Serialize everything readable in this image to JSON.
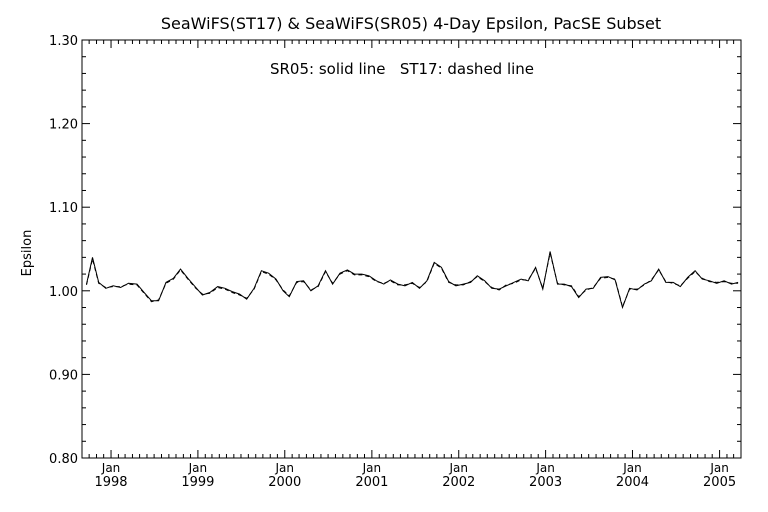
{
  "chart_data": {
    "type": "line",
    "title": "SeaWiFS(ST17) & SeaWiFS(SR05) 4-Day Epsilon, PacSE Subset",
    "annotation": "SR05: solid line   ST17: dashed line",
    "ylabel": "Epsilon",
    "xlabel": "",
    "ylim": [
      0.8,
      1.3
    ],
    "xlim": [
      "1997-09-01",
      "2005-04-01"
    ],
    "grid": false,
    "y_ticks": [
      "0.80",
      "0.90",
      "1.00",
      "1.10",
      "1.20",
      "1.30"
    ],
    "x_ticks": [
      {
        "month": "Jan",
        "year": "1998",
        "date": "1998-01-01"
      },
      {
        "month": "Jan",
        "year": "1999",
        "date": "1999-01-01"
      },
      {
        "month": "Jan",
        "year": "2000",
        "date": "2000-01-01"
      },
      {
        "month": "Jan",
        "year": "2001",
        "date": "2001-01-01"
      },
      {
        "month": "Jan",
        "year": "2002",
        "date": "2002-01-01"
      },
      {
        "month": "Jan",
        "year": "2003",
        "date": "2003-01-01"
      },
      {
        "month": "Jan",
        "year": "2004",
        "date": "2004-01-01"
      },
      {
        "month": "Jan",
        "year": "2005",
        "date": "2005-01-01"
      }
    ],
    "series": [
      {
        "style": "solid",
        "color": "#000000",
        "points": [
          [
            "1997-09-20",
            1.008
          ],
          [
            "1997-10-15",
            1.04
          ],
          [
            "1997-11-10",
            1.01
          ],
          [
            "1997-12-10",
            1.003
          ],
          [
            "1998-01-10",
            1.006
          ],
          [
            "1998-02-10",
            1.004
          ],
          [
            "1998-03-15",
            1.009
          ],
          [
            "1998-04-20",
            1.008
          ],
          [
            "1998-05-20",
            0.998
          ],
          [
            "1998-06-20",
            0.988
          ],
          [
            "1998-07-20",
            0.988
          ],
          [
            "1998-08-20",
            1.01
          ],
          [
            "1998-09-20",
            1.015
          ],
          [
            "1998-10-20",
            1.026
          ],
          [
            "1998-11-20",
            1.015
          ],
          [
            "1998-12-20",
            1.005
          ],
          [
            "1999-01-20",
            0.995
          ],
          [
            "1999-02-20",
            0.998
          ],
          [
            "1999-03-25",
            1.005
          ],
          [
            "1999-04-25",
            1.003
          ],
          [
            "1999-05-25",
            0.999
          ],
          [
            "1999-06-25",
            0.996
          ],
          [
            "1999-07-25",
            0.99
          ],
          [
            "1999-08-25",
            1.003
          ],
          [
            "1999-09-25",
            1.024
          ],
          [
            "1999-10-25",
            1.021
          ],
          [
            "1999-11-25",
            1.014
          ],
          [
            "1999-12-25",
            1.0
          ],
          [
            "2000-01-20",
            0.993
          ],
          [
            "2000-02-20",
            1.011
          ],
          [
            "2000-03-20",
            1.012
          ],
          [
            "2000-04-20",
            1.0
          ],
          [
            "2000-05-20",
            1.006
          ],
          [
            "2000-06-20",
            1.024
          ],
          [
            "2000-07-20",
            1.008
          ],
          [
            "2000-08-20",
            1.021
          ],
          [
            "2000-09-20",
            1.025
          ],
          [
            "2000-10-20",
            1.02
          ],
          [
            "2000-11-20",
            1.02
          ],
          [
            "2000-12-20",
            1.018
          ],
          [
            "2001-01-20",
            1.012
          ],
          [
            "2001-02-20",
            1.008
          ],
          [
            "2001-03-20",
            1.013
          ],
          [
            "2001-04-20",
            1.008
          ],
          [
            "2001-05-20",
            1.006
          ],
          [
            "2001-06-20",
            1.01
          ],
          [
            "2001-07-20",
            1.003
          ],
          [
            "2001-08-20",
            1.012
          ],
          [
            "2001-09-20",
            1.034
          ],
          [
            "2001-10-20",
            1.028
          ],
          [
            "2001-11-20",
            1.011
          ],
          [
            "2001-12-20",
            1.006
          ],
          [
            "2002-01-20",
            1.008
          ],
          [
            "2002-02-20",
            1.01
          ],
          [
            "2002-03-20",
            1.018
          ],
          [
            "2002-04-20",
            1.012
          ],
          [
            "2002-05-20",
            1.003
          ],
          [
            "2002-06-20",
            1.002
          ],
          [
            "2002-07-20",
            1.006
          ],
          [
            "2002-08-20",
            1.01
          ],
          [
            "2002-09-20",
            1.014
          ],
          [
            "2002-10-20",
            1.012
          ],
          [
            "2002-11-20",
            1.028
          ],
          [
            "2002-12-20",
            1.002
          ],
          [
            "2003-01-20",
            1.047
          ],
          [
            "2003-02-20",
            1.008
          ],
          [
            "2003-03-20",
            1.008
          ],
          [
            "2003-04-20",
            1.005
          ],
          [
            "2003-05-20",
            0.992
          ],
          [
            "2003-06-20",
            1.002
          ],
          [
            "2003-07-20",
            1.003
          ],
          [
            "2003-08-20",
            1.016
          ],
          [
            "2003-09-20",
            1.017
          ],
          [
            "2003-10-20",
            1.013
          ],
          [
            "2003-11-20",
            0.98
          ],
          [
            "2003-12-20",
            1.003
          ],
          [
            "2004-01-20",
            1.001
          ],
          [
            "2004-02-20",
            1.008
          ],
          [
            "2004-03-20",
            1.012
          ],
          [
            "2004-04-20",
            1.026
          ],
          [
            "2004-05-20",
            1.01
          ],
          [
            "2004-06-20",
            1.01
          ],
          [
            "2004-07-20",
            1.005
          ],
          [
            "2004-08-20",
            1.016
          ],
          [
            "2004-09-20",
            1.024
          ],
          [
            "2004-10-20",
            1.014
          ],
          [
            "2004-11-20",
            1.012
          ],
          [
            "2004-12-20",
            1.009
          ],
          [
            "2005-01-20",
            1.012
          ],
          [
            "2005-02-20",
            1.008
          ],
          [
            "2005-03-20",
            1.01
          ]
        ]
      },
      {
        "style": "dashed",
        "color": "#000000",
        "points": [
          [
            "1997-09-20",
            1.007
          ],
          [
            "1997-10-15",
            1.038
          ],
          [
            "1997-11-10",
            1.009
          ],
          [
            "1997-12-10",
            1.004
          ],
          [
            "1998-01-10",
            1.005
          ],
          [
            "1998-02-10",
            1.005
          ],
          [
            "1998-03-15",
            1.008
          ],
          [
            "1998-04-20",
            1.007
          ],
          [
            "1998-05-20",
            0.997
          ],
          [
            "1998-06-20",
            0.987
          ],
          [
            "1998-07-20",
            0.989
          ],
          [
            "1998-08-20",
            1.009
          ],
          [
            "1998-09-20",
            1.014
          ],
          [
            "1998-10-20",
            1.025
          ],
          [
            "1998-11-20",
            1.014
          ],
          [
            "1998-12-20",
            1.004
          ],
          [
            "1999-01-20",
            0.996
          ],
          [
            "1999-02-20",
            0.997
          ],
          [
            "1999-03-25",
            1.004
          ],
          [
            "1999-04-25",
            1.002
          ],
          [
            "1999-05-25",
            0.998
          ],
          [
            "1999-06-25",
            0.995
          ],
          [
            "1999-07-25",
            0.991
          ],
          [
            "1999-08-25",
            1.002
          ],
          [
            "1999-09-25",
            1.023
          ],
          [
            "1999-10-25",
            1.02
          ],
          [
            "1999-11-25",
            1.013
          ],
          [
            "1999-12-25",
            1.001
          ],
          [
            "2000-01-20",
            0.994
          ],
          [
            "2000-02-20",
            1.01
          ],
          [
            "2000-03-20",
            1.011
          ],
          [
            "2000-04-20",
            1.001
          ],
          [
            "2000-05-20",
            1.005
          ],
          [
            "2000-06-20",
            1.023
          ],
          [
            "2000-07-20",
            1.009
          ],
          [
            "2000-08-20",
            1.02
          ],
          [
            "2000-09-20",
            1.024
          ],
          [
            "2000-10-20",
            1.019
          ],
          [
            "2000-11-20",
            1.019
          ],
          [
            "2000-12-20",
            1.017
          ],
          [
            "2001-01-20",
            1.011
          ],
          [
            "2001-02-20",
            1.009
          ],
          [
            "2001-03-20",
            1.012
          ],
          [
            "2001-04-20",
            1.007
          ],
          [
            "2001-05-20",
            1.007
          ],
          [
            "2001-06-20",
            1.009
          ],
          [
            "2001-07-20",
            1.004
          ],
          [
            "2001-08-20",
            1.011
          ],
          [
            "2001-09-20",
            1.033
          ],
          [
            "2001-10-20",
            1.027
          ],
          [
            "2001-11-20",
            1.01
          ],
          [
            "2001-12-20",
            1.007
          ],
          [
            "2002-01-20",
            1.007
          ],
          [
            "2002-02-20",
            1.011
          ],
          [
            "2002-03-20",
            1.017
          ],
          [
            "2002-04-20",
            1.011
          ],
          [
            "2002-05-20",
            1.004
          ],
          [
            "2002-06-20",
            1.001
          ],
          [
            "2002-07-20",
            1.007
          ],
          [
            "2002-08-20",
            1.009
          ],
          [
            "2002-09-20",
            1.013
          ],
          [
            "2002-10-20",
            1.013
          ],
          [
            "2002-11-20",
            1.027
          ],
          [
            "2002-12-20",
            1.003
          ],
          [
            "2003-01-20",
            1.045
          ],
          [
            "2003-02-20",
            1.009
          ],
          [
            "2003-03-20",
            1.007
          ],
          [
            "2003-04-20",
            1.006
          ],
          [
            "2003-05-20",
            0.993
          ],
          [
            "2003-06-20",
            1.001
          ],
          [
            "2003-07-20",
            1.004
          ],
          [
            "2003-08-20",
            1.015
          ],
          [
            "2003-09-20",
            1.016
          ],
          [
            "2003-10-20",
            1.014
          ],
          [
            "2003-11-20",
            0.981
          ],
          [
            "2003-12-20",
            1.002
          ],
          [
            "2004-01-20",
            1.002
          ],
          [
            "2004-02-20",
            1.007
          ],
          [
            "2004-03-20",
            1.013
          ],
          [
            "2004-04-20",
            1.025
          ],
          [
            "2004-05-20",
            1.011
          ],
          [
            "2004-06-20",
            1.009
          ],
          [
            "2004-07-20",
            1.006
          ],
          [
            "2004-08-20",
            1.015
          ],
          [
            "2004-09-20",
            1.023
          ],
          [
            "2004-10-20",
            1.015
          ],
          [
            "2004-11-20",
            1.011
          ],
          [
            "2004-12-20",
            1.01
          ],
          [
            "2005-01-20",
            1.011
          ],
          [
            "2005-02-20",
            1.009
          ],
          [
            "2005-03-20",
            1.009
          ]
        ]
      }
    ]
  }
}
